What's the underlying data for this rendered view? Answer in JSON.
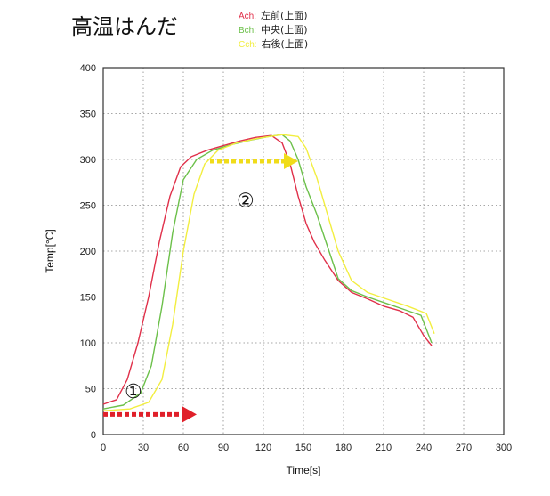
{
  "title": "高温はんだ",
  "legend": [
    {
      "key": "Ach:",
      "name": "左前(上面)",
      "color": "#e0304a"
    },
    {
      "key": "Bch:",
      "name": "中央(上面)",
      "color": "#6cc04a"
    },
    {
      "key": "Cch:",
      "name": "右後(上面)",
      "color": "#f2ee40"
    }
  ],
  "chart_data": {
    "type": "line",
    "xlabel": "Time[s]",
    "ylabel": "Temp[°C]",
    "xlim": [
      0,
      300
    ],
    "ylim": [
      0,
      400
    ],
    "xticks": [
      0,
      30,
      60,
      90,
      120,
      150,
      180,
      210,
      240,
      270,
      300
    ],
    "yticks": [
      0,
      50,
      100,
      150,
      200,
      250,
      300,
      350,
      400
    ],
    "grid": true,
    "legend_position": "top",
    "series": [
      {
        "name": "Ach",
        "color": "#e0304a",
        "points": [
          [
            0,
            33
          ],
          [
            10,
            38
          ],
          [
            18,
            60
          ],
          [
            26,
            100
          ],
          [
            34,
            150
          ],
          [
            42,
            210
          ],
          [
            50,
            260
          ],
          [
            58,
            292
          ],
          [
            66,
            303
          ],
          [
            78,
            310
          ],
          [
            90,
            315
          ],
          [
            102,
            320
          ],
          [
            114,
            324
          ],
          [
            126,
            326
          ],
          [
            134,
            318
          ],
          [
            140,
            295
          ],
          [
            146,
            260
          ],
          [
            152,
            230
          ],
          [
            158,
            210
          ],
          [
            166,
            190
          ],
          [
            176,
            168
          ],
          [
            186,
            155
          ],
          [
            198,
            148
          ],
          [
            210,
            140
          ],
          [
            222,
            135
          ],
          [
            232,
            128
          ],
          [
            240,
            108
          ],
          [
            246,
            97
          ]
        ]
      },
      {
        "name": "Bch",
        "color": "#6cc04a",
        "points": [
          [
            0,
            28
          ],
          [
            15,
            32
          ],
          [
            28,
            45
          ],
          [
            36,
            75
          ],
          [
            44,
            140
          ],
          [
            52,
            220
          ],
          [
            60,
            278
          ],
          [
            70,
            300
          ],
          [
            82,
            310
          ],
          [
            96,
            316
          ],
          [
            110,
            321
          ],
          [
            124,
            325
          ],
          [
            134,
            327
          ],
          [
            140,
            320
          ],
          [
            146,
            300
          ],
          [
            152,
            270
          ],
          [
            160,
            240
          ],
          [
            168,
            205
          ],
          [
            176,
            170
          ],
          [
            186,
            157
          ],
          [
            198,
            150
          ],
          [
            212,
            143
          ],
          [
            226,
            136
          ],
          [
            238,
            130
          ],
          [
            246,
            100
          ]
        ]
      },
      {
        "name": "Cch",
        "color": "#f2ee40",
        "points": [
          [
            0,
            26
          ],
          [
            20,
            28
          ],
          [
            34,
            35
          ],
          [
            44,
            60
          ],
          [
            52,
            120
          ],
          [
            60,
            200
          ],
          [
            68,
            262
          ],
          [
            76,
            295
          ],
          [
            86,
            310
          ],
          [
            100,
            318
          ],
          [
            116,
            323
          ],
          [
            134,
            327
          ],
          [
            146,
            325
          ],
          [
            152,
            312
          ],
          [
            160,
            280
          ],
          [
            168,
            240
          ],
          [
            176,
            200
          ],
          [
            186,
            168
          ],
          [
            198,
            155
          ],
          [
            212,
            148
          ],
          [
            228,
            140
          ],
          [
            242,
            132
          ],
          [
            248,
            110
          ]
        ]
      }
    ],
    "annotations": [
      {
        "label": "①",
        "color": "#e0202a",
        "from": [
          0,
          22
        ],
        "to": [
          70,
          22
        ]
      },
      {
        "label": "②",
        "color": "#f0dc1a",
        "from": [
          80,
          298
        ],
        "to": [
          146,
          298
        ]
      }
    ]
  }
}
